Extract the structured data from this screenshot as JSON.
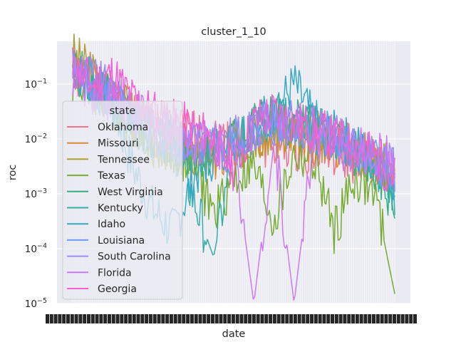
{
  "chart_data": {
    "type": "line",
    "title": "cluster_1_10",
    "xlabel": "date",
    "ylabel": "roc",
    "yscale": "log",
    "ylim": [
      1e-05,
      0.6
    ],
    "y_ticks": [
      {
        "value": 0.1,
        "base": "10",
        "exp": "−1"
      },
      {
        "value": 0.01,
        "base": "10",
        "exp": "−2"
      },
      {
        "value": 0.001,
        "base": "10",
        "exp": "−3"
      },
      {
        "value": 0.0001,
        "base": "10",
        "exp": "−4"
      },
      {
        "value": 1e-05,
        "base": "10",
        "exp": "−5"
      }
    ],
    "x_tick_labels_legible": false,
    "grid": true,
    "legend": {
      "title": "state",
      "placement": "center-left"
    },
    "series": [
      {
        "name": "Oklahoma",
        "color": "#f77189",
        "values": [
          0.15,
          0.09,
          0.05,
          0.03,
          0.02,
          0.015,
          0.012,
          0.01,
          0.009,
          0.008,
          0.008,
          0.007,
          0.006,
          0.005,
          0.004,
          0.003,
          0.002
        ]
      },
      {
        "name": "Missouri",
        "color": "#dc8932",
        "values": [
          0.3,
          0.12,
          0.05,
          0.02,
          0.012,
          0.008,
          0.006,
          0.005,
          0.007,
          0.01,
          0.012,
          0.012,
          0.01,
          0.008,
          0.006,
          0.004,
          0.003
        ]
      },
      {
        "name": "Tennessee",
        "color": "#ae9d31",
        "values": [
          0.35,
          0.15,
          0.06,
          0.03,
          0.01,
          0.006,
          0.005,
          0.006,
          0.008,
          0.012,
          0.015,
          0.015,
          0.012,
          0.01,
          0.007,
          0.004,
          0.003
        ]
      },
      {
        "name": "Texas",
        "color": "#77ab31",
        "values": [
          0.12,
          0.08,
          0.04,
          0.02,
          0.008,
          0.005,
          0.004,
          0.0004,
          0.002,
          0.003,
          0.0003,
          0.005,
          0.004,
          0.0002,
          0.002,
          0.001,
          1.5e-05
        ]
      },
      {
        "name": "West Virginia",
        "color": "#33b07a",
        "values": [
          0.2,
          0.1,
          0.05,
          0.02,
          0.01,
          0.008,
          0.006,
          0.005,
          0.01,
          0.02,
          0.025,
          0.02,
          0.015,
          0.01,
          0.006,
          0.003,
          0.0006
        ]
      },
      {
        "name": "Kentucky",
        "color": "#36ada4",
        "values": [
          0.25,
          0.1,
          0.04,
          0.02,
          0.012,
          0.008,
          0.0008,
          7e-05,
          0.006,
          0.015,
          0.03,
          0.02,
          0.015,
          0.01,
          0.006,
          0.004,
          0.001
        ]
      },
      {
        "name": "Idaho",
        "color": "#38a9c5",
        "values": [
          0.2,
          0.09,
          0.04,
          0.003,
          0.0005,
          0.0002,
          0.002,
          0.005,
          0.01,
          0.02,
          0.03,
          0.1,
          0.02,
          0.012,
          0.008,
          0.004,
          0.002
        ]
      },
      {
        "name": "Louisiana",
        "color": "#6e9bf4",
        "values": [
          0.18,
          0.1,
          0.05,
          0.03,
          0.015,
          0.01,
          0.008,
          0.006,
          0.008,
          0.015,
          0.02,
          0.02,
          0.015,
          0.01,
          0.006,
          0.004,
          0.003
        ]
      },
      {
        "name": "South Carolina",
        "color": "#9a8cf4",
        "values": [
          0.22,
          0.13,
          0.06,
          0.03,
          0.015,
          0.01,
          0.008,
          0.007,
          0.01,
          0.015,
          0.02,
          0.018,
          0.014,
          0.01,
          0.007,
          0.005,
          0.003
        ]
      },
      {
        "name": "Florida",
        "color": "#cc7af4",
        "values": [
          0.15,
          0.08,
          0.05,
          0.03,
          0.02,
          0.015,
          0.01,
          0.008,
          0.006,
          1e-05,
          0.01,
          1e-05,
          0.012,
          0.008,
          0.006,
          0.005,
          0.004
        ]
      },
      {
        "name": "Georgia",
        "color": "#f45fd1",
        "values": [
          0.2,
          0.1,
          0.15,
          0.05,
          0.03,
          0.02,
          0.015,
          0.01,
          0.003,
          0.02,
          0.03,
          0.02,
          0.015,
          0.01,
          0.007,
          0.005,
          0.002
        ]
      }
    ]
  }
}
